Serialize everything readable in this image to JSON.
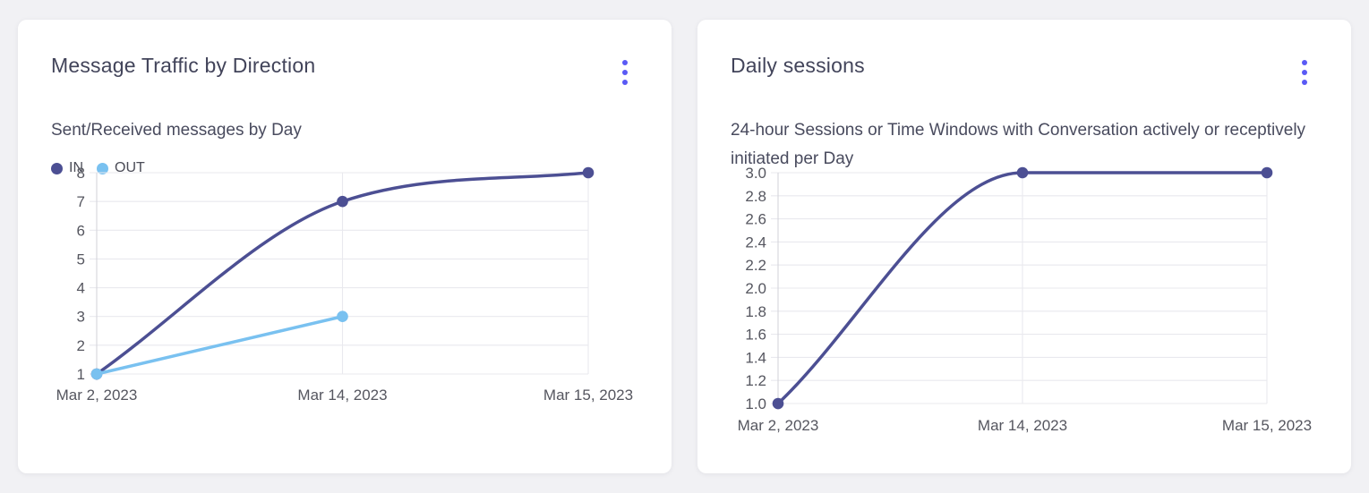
{
  "theme": {
    "page_background": "#f1f1f4",
    "card_background": "#ffffff",
    "menu_dot_color": "#5a5af5",
    "grid_color": "#e9e9ee",
    "axis_color": "#d8d8de",
    "tick_label_color": "#55565f",
    "title_color": "#42445a",
    "subtitle_color": "#494b5e",
    "series_in_color": "#4c4f93",
    "series_out_color": "#79c1f0"
  },
  "cards": [
    {
      "title": "Message Traffic by Direction",
      "subtitle": "Sent/Received messages by Day",
      "menu_icon": "kebab-menu-icon",
      "chart_data": {
        "type": "line",
        "title": "Sent/Received messages by Day",
        "categories": [
          "Mar 2, 2023",
          "Mar 14, 2023",
          "Mar 15, 2023"
        ],
        "series": [
          {
            "name": "IN",
            "color": "#4c4f93",
            "values": [
              1,
              7,
              8
            ]
          },
          {
            "name": "OUT",
            "color": "#79c1f0",
            "values": [
              1,
              3,
              null
            ]
          }
        ],
        "xlabel": "",
        "ylabel": "",
        "ylim": [
          1,
          8
        ],
        "ytick_labels": [
          "1",
          "2",
          "3",
          "4",
          "5",
          "6",
          "7",
          "8"
        ],
        "grid": true,
        "legend_position": "top-left",
        "curve": "monotone"
      }
    },
    {
      "title": "Daily sessions",
      "subtitle": "24-hour Sessions or Time Windows with Conversation actively or receptively initiated per Day",
      "menu_icon": "kebab-menu-icon",
      "chart_data": {
        "type": "line",
        "title": "24-hour Sessions or Time Windows with Conversation actively or receptively initiated per Day",
        "categories": [
          "Mar 2, 2023",
          "Mar 14, 2023",
          "Mar 15, 2023"
        ],
        "series": [
          {
            "name": "Daily sessions",
            "color": "#4c4f93",
            "values": [
              1.0,
              3.0,
              3.0
            ]
          }
        ],
        "xlabel": "",
        "ylabel": "",
        "ylim": [
          1.0,
          3.0
        ],
        "ytick_labels": [
          "1.0",
          "1.2",
          "1.4",
          "1.6",
          "1.8",
          "2.0",
          "2.2",
          "2.4",
          "2.6",
          "2.8",
          "3.0"
        ],
        "grid": true,
        "legend_position": "none",
        "curve": "monotone"
      }
    }
  ]
}
